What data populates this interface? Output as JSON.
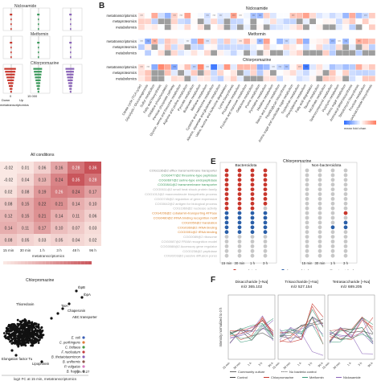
{
  "panel_labels": {
    "B": "B",
    "E": "E",
    "F": "F"
  },
  "panelA": {
    "titles": [
      "Niclosamide",
      "Metformin",
      "Chlorpromazine"
    ],
    "xticks": [
      "0",
      "15 000"
    ],
    "down_up": [
      "Down",
      "Up"
    ],
    "xlabel": "metatranscriptomics"
  },
  "panelB": {
    "drug_titles": [
      "Niclosamide",
      "Metformin",
      "Chlorpromazine"
    ],
    "row_labels": [
      "metatranscriptomics",
      "metaproteomics",
      "metabolomics"
    ],
    "column_labels": [
      "Citrate cycle (TCA cycle)",
      "Glycolysis / Gluconeogenesis",
      "Sulfur metabolism",
      "Fatty acid biosynthesis",
      "Oxidative phosphorylation",
      "Pentose phosphate pathway",
      "Glycine, serine and threonine metabolism",
      "Arginine and proline metabolism",
      "Pyruvate metabolism",
      "Butanoate metabolism",
      "Methane metabolism",
      "Cysteine and methionine metabolism",
      "Alanine, aspartate and glutamate metabolism",
      "Valine, leucine and isoleucine degradation",
      "Lysine biosynthesis",
      "Propanoate metabolism",
      "Fructose and mannose metabolism",
      "Galactose metabolism",
      "Purine metabolism",
      "Pyrimidine metabolism",
      "Histidine metabolism",
      "Starch and sucrose metabolism",
      "Peptidoglycan biosynthesis",
      "Amino sugar and nucleotide sugar metabolism",
      "Tryptophan metabolism",
      "Phenylalanine metabolism",
      "Fatty acid degradation",
      "Taurine metabolism",
      "Nicotinate metabolism",
      "Selenocompound metabolism",
      "Porphyrin metabolism",
      "Amino sugar metabolism",
      "Aminoacyl-tRNA biosynthesis",
      "Streptomycin biosynthesis",
      "Fructose metabolism",
      "Lipopolysaccharide biosynthesis"
    ],
    "colorbar_label": "mean fold chan",
    "colors": {
      "up": "#d95f3b",
      "down": "#2f6db3",
      "na": "#9e9e9e"
    }
  },
  "panelC": {
    "title": "All conditions",
    "row_values": [
      [
        "-0.02",
        "0.01",
        "0.06",
        "0.16",
        "0.28",
        "0.36"
      ],
      [
        "-0.02",
        "0.04",
        "0.13",
        "0.24",
        "0.35",
        "0.28"
      ],
      [
        "0.02",
        "0.08",
        "0.19",
        "0.26",
        "0.24",
        "0.17"
      ],
      [
        "0.08",
        "0.15",
        "0.22",
        "0.21",
        "0.14",
        "0.10"
      ],
      [
        "0.12",
        "0.15",
        "0.21",
        "0.14",
        "0.11",
        "0.06"
      ],
      [
        "0.14",
        "0.11",
        "0.17",
        "0.10",
        "0.07",
        "0.03"
      ],
      [
        "0.08",
        "0.05",
        "0.03",
        "0.05",
        "0.04",
        "0.02"
      ]
    ],
    "col_labels": [
      "15 min",
      "30 min",
      "1 h",
      "3 h",
      "48 h",
      "96 h"
    ],
    "xlabel": "metatranscriptomics",
    "colorbar_label": "Pearson correlation between log2 fold changes"
  },
  "panelD": {
    "title": "Chlorpromazine",
    "annotations": [
      "IbpB",
      "IbpA",
      "Thioredoxin",
      "TatA",
      "Chaperonin",
      "ABC transporter",
      "Elongation factor Tu",
      "Lipoprotein",
      "Rpa"
    ],
    "legend": [
      "E. coli",
      "C. perfringens",
      "C. boltaea",
      "F. nucleatum",
      "B. thetaiotaomicron",
      "B. uniformis",
      "P. vulgatus",
      "B. fragilis"
    ],
    "legend_colors": [
      "#3b5fb5",
      "#e07b39",
      "#4a9a4a",
      "#c43c3c",
      "#8a63b8",
      "#8c564b",
      "#d67cc0",
      "#7f7f7f"
    ],
    "rho_label": "ρ = 0.27",
    "xlabel": "log2 FC at 15 min, metatranscriptomics"
  },
  "panelE": {
    "title": "Chlorpromazine",
    "group_titles": [
      "Bacteroidota",
      "Non-bacteroidota"
    ],
    "go_terms": [
      {
        "label": "COG1136@2 efflux transmembrane transporter",
        "color": "#8a8a8a"
      },
      {
        "label": "COG0477@2 threonine-type peptidase",
        "color": "#3c9a5c"
      },
      {
        "label": "COG0697@2 serine-type endopeptidase",
        "color": "#3c9a5c"
      },
      {
        "label": "COG0841@2 transmembrane transporter",
        "color": "#3c9a5c"
      },
      {
        "label": "COG0611@2 small heat shock protein family",
        "color": "#b0b0b0"
      },
      {
        "label": "COG1012@2 macromolecule biosynthetic process",
        "color": "#b0b0b0"
      },
      {
        "label": "COG0745@2 regulation of gene expression",
        "color": "#b0b0b0"
      },
      {
        "label": "COG0642@2 antigen for biological process",
        "color": "#b0b0b0"
      },
      {
        "label": "COG1960@2 nuclease activity",
        "color": "#b0b0b0"
      },
      {
        "label": "COG4206@2 cobalamin-transporting ATPase",
        "color": "#d9822b"
      },
      {
        "label": "COG0480@2 rRNA binding recognition motif",
        "color": "#d9822b"
      },
      {
        "label": "COG0050@2 translation",
        "color": "#d9822b"
      },
      {
        "label": "COG0360@2 rRNA binding",
        "color": "#d9822b"
      },
      {
        "label": "COG0051@2 tRNA binding",
        "color": "#d9822b"
      },
      {
        "label": "COG0089@2 ribosome",
        "color": "#b0b0b0"
      },
      {
        "label": "COG0087@2 FRAM recognition model",
        "color": "#b0b0b0"
      },
      {
        "label": "COG0088@2 Accessory gene regulator",
        "color": "#b0b0b0"
      },
      {
        "label": "COG0238@2 peptidase",
        "color": "#b0b0b0"
      },
      {
        "label": "COG0203@2 passive diffusion pores",
        "color": "#b0b0b0"
      }
    ],
    "time_labels": [
      "15 min",
      "30 min",
      "1 h",
      "3 h"
    ],
    "legend": [
      "upregulated",
      "downregulated",
      "not enriched"
    ],
    "colors": {
      "up": "#c8372d",
      "down": "#2a5fa8",
      "ns": "#c8c8c8"
    },
    "bact_grid": [
      "uuuu",
      "uuuu",
      "uuuu",
      "uuuu",
      "uuuu",
      "uuuu",
      "uuuu",
      "uuuu",
      "uuun",
      "dddd",
      "dddd",
      "dddd",
      "dddd",
      "dddd",
      "nnnn",
      "nnnn",
      "nnnn",
      "nnnn",
      "nnnn"
    ],
    "nonbact_grid": [
      "nnnn",
      "nnnn",
      "nnnn",
      "nnnn",
      "nnnn",
      "nnnn",
      "nnnn",
      "nnnn",
      "nnnn",
      "nnnu",
      "nnnn",
      "nnnd",
      "nndd",
      "nnnn",
      "nnnn",
      "nnnn",
      "nnnn",
      "nnnn",
      "nnnn"
    ]
  },
  "panelF": {
    "titles": [
      "Disaccharide [+Na]\nm/z 365.102",
      "Trisaccharide [+Na]\nm/z 527.154",
      "Tetrasaccharide [+Na]\nm/z 689.205"
    ],
    "title_lines": [
      [
        "Disaccharide [+Na]",
        "m/z 365.102"
      ],
      [
        "Trisaccharide [+Na]",
        "m/z 527.154"
      ],
      [
        "Tetrasaccharide [+Na]",
        "m/z 689.205"
      ]
    ],
    "ylabel": "Intensity normalized to 0 h",
    "xticks": [
      "15 min",
      "30 min",
      "1 h",
      "3 h",
      "96 h"
    ],
    "legend": [
      "Community culture",
      "No bacteria control",
      "Control",
      "Chlorpromazine",
      "Metformin",
      "Niclosamide"
    ],
    "colors": {
      "control": "#444444",
      "chlorpromazine": "#c8372d",
      "metformin": "#3c9a7a",
      "niclosamide": "#8a63b8"
    }
  }
}
